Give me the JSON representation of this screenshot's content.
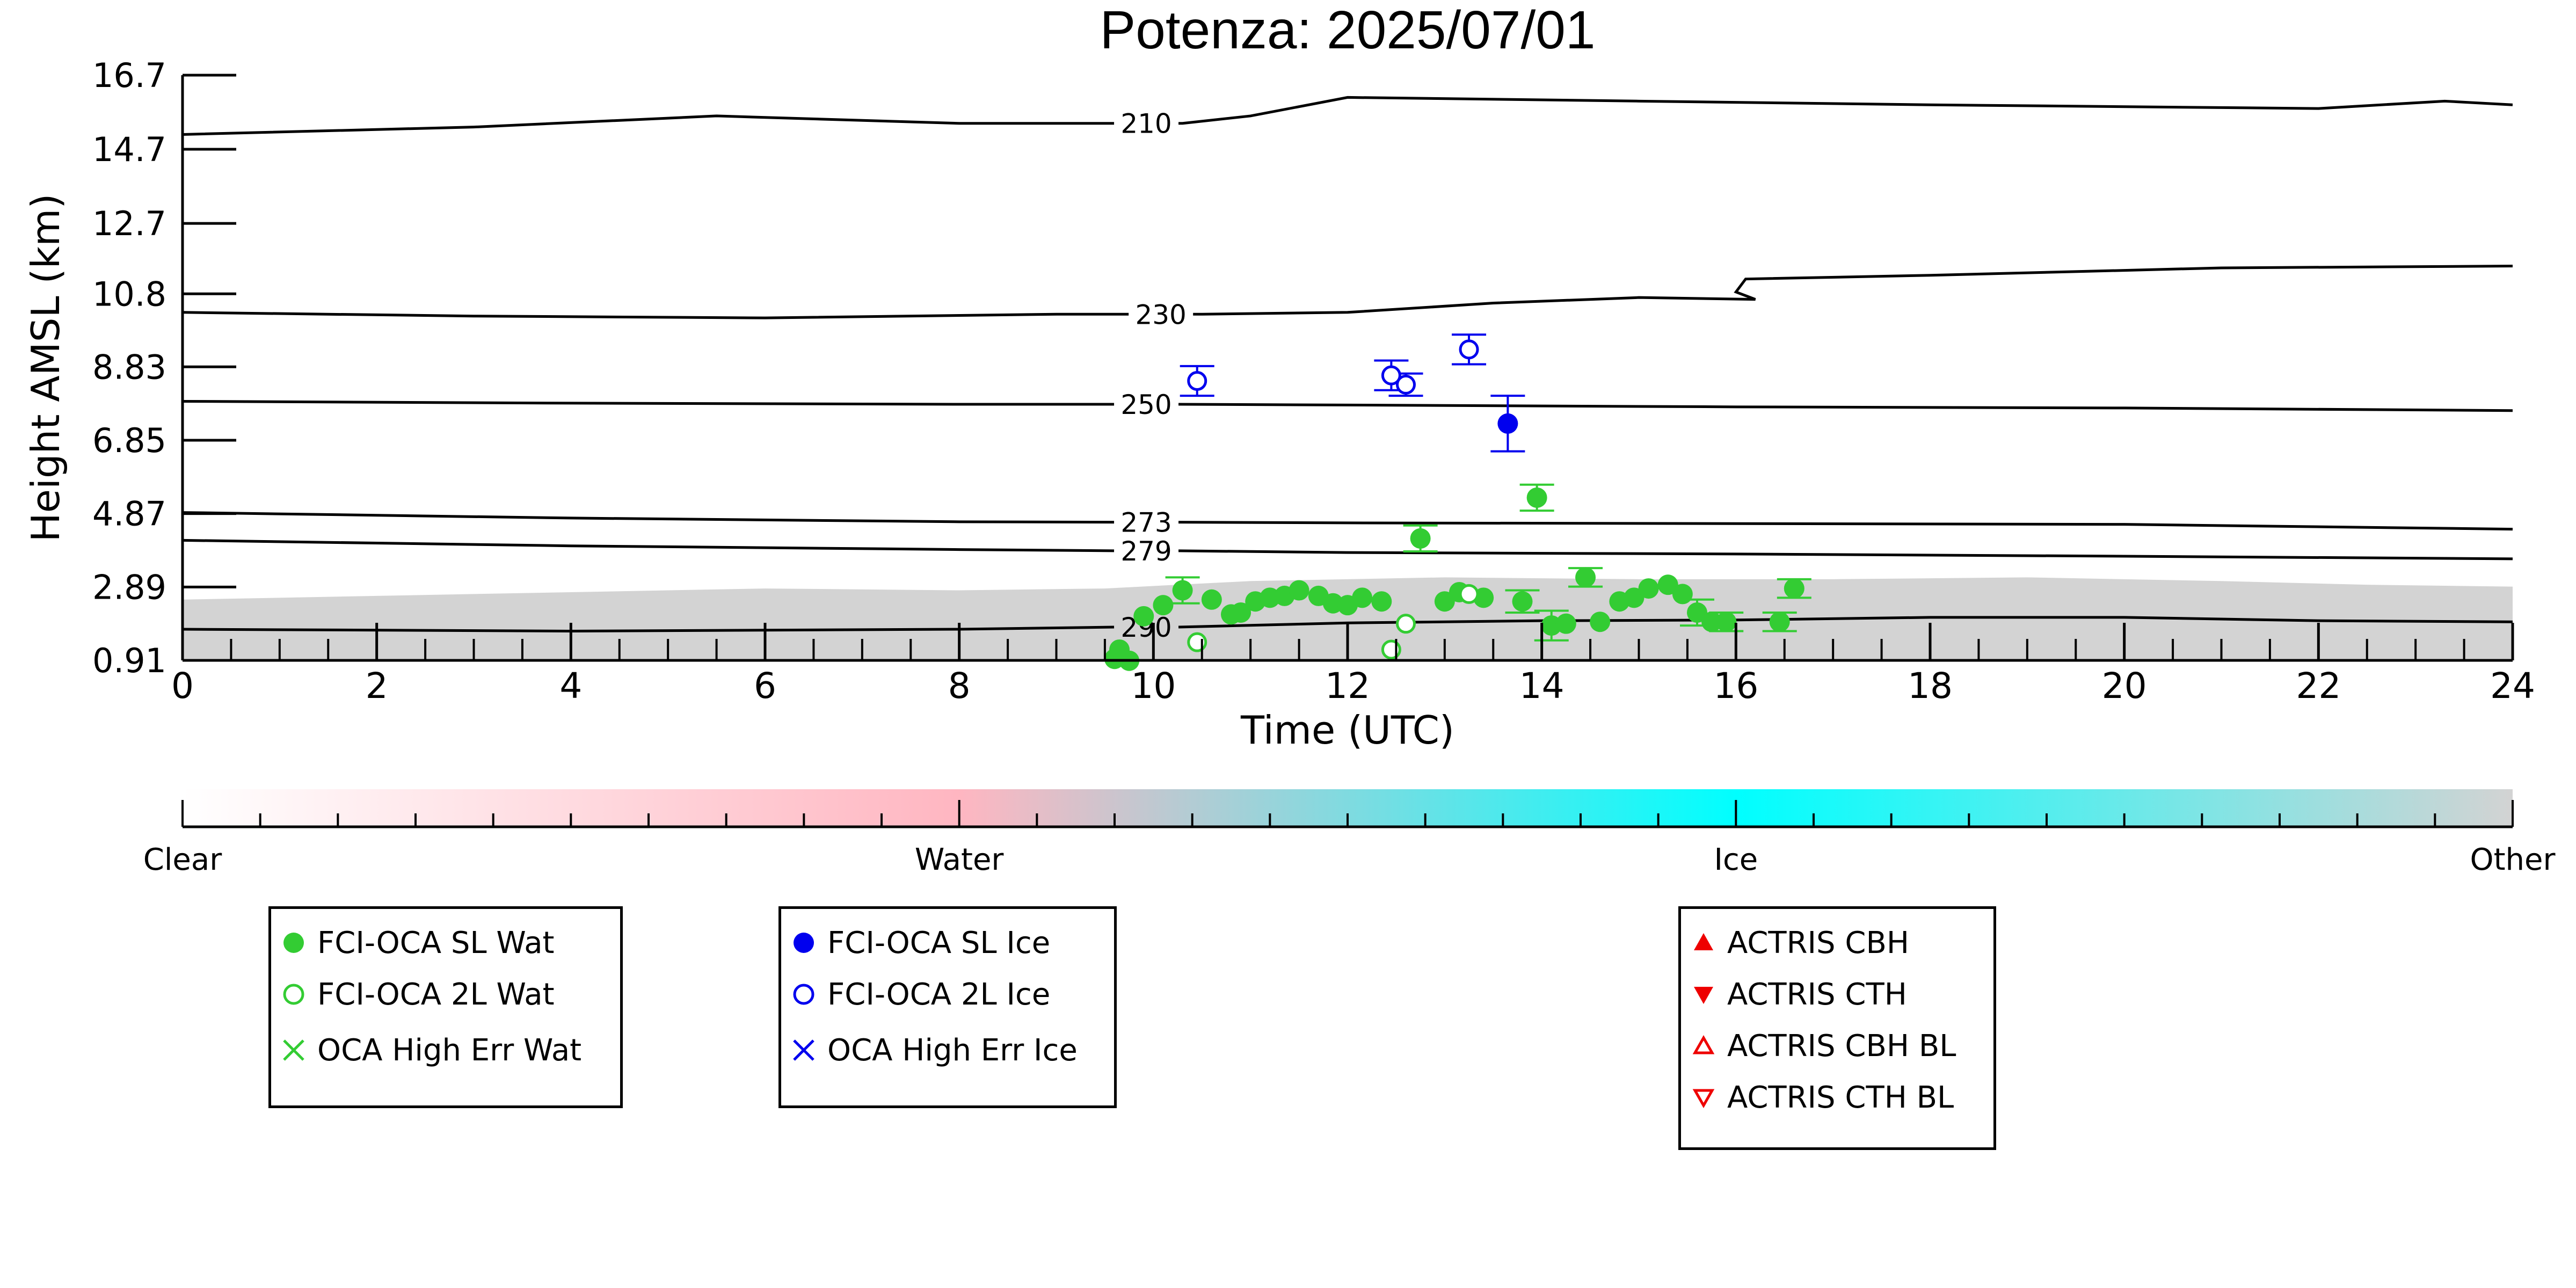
{
  "chart_data": {
    "type": "scatter",
    "title": "Potenza: 2025/07/01",
    "xlabel": "Time (UTC)",
    "ylabel": "Height AMSL (km)",
    "xlim": [
      0,
      24
    ],
    "ylim": [
      0.91,
      16.7
    ],
    "x_ticks": [
      "0",
      "2",
      "4",
      "6",
      "8",
      "10",
      "12",
      "14",
      "16",
      "18",
      "20",
      "22",
      "24"
    ],
    "y_ticks": [
      "0.91",
      "2.89",
      "4.87",
      "6.85",
      "8.83",
      "10.8",
      "12.7",
      "14.7",
      "16.7"
    ],
    "y_tick_values": [
      0.91,
      2.89,
      4.87,
      6.85,
      8.83,
      10.8,
      12.7,
      14.7,
      16.7
    ],
    "temperature_contours": [
      {
        "label": "210",
        "label_x": 9.65,
        "points": [
          [
            0,
            15.1
          ],
          [
            3,
            15.3
          ],
          [
            5.5,
            15.6
          ],
          [
            8,
            15.4
          ],
          [
            9.65,
            15.4
          ],
          [
            10.3,
            15.4
          ],
          [
            11,
            15.6
          ],
          [
            12,
            16.1
          ],
          [
            15,
            16.0
          ],
          [
            18,
            15.9
          ],
          [
            22,
            15.8
          ],
          [
            23.3,
            16.0
          ],
          [
            24,
            15.9
          ]
        ]
      },
      {
        "label": "230",
        "label_x": 9.8,
        "points": [
          [
            0,
            10.3
          ],
          [
            3,
            10.2
          ],
          [
            6,
            10.15
          ],
          [
            9,
            10.25
          ],
          [
            10.5,
            10.25
          ],
          [
            12,
            10.3
          ],
          [
            13.5,
            10.55
          ],
          [
            15,
            10.7
          ],
          [
            16.2,
            10.65
          ],
          [
            16.0,
            10.85
          ],
          [
            16.1,
            11.2
          ],
          [
            18,
            11.3
          ],
          [
            21,
            11.5
          ],
          [
            24,
            11.55
          ]
        ]
      },
      {
        "label": "250",
        "label_x": 9.65,
        "points": [
          [
            0,
            7.9
          ],
          [
            4,
            7.85
          ],
          [
            8,
            7.82
          ],
          [
            10,
            7.82
          ],
          [
            12,
            7.8
          ],
          [
            16,
            7.75
          ],
          [
            20,
            7.72
          ],
          [
            24,
            7.65
          ]
        ]
      },
      {
        "label": "273",
        "label_x": 9.65,
        "points": [
          [
            0,
            4.9
          ],
          [
            4,
            4.75
          ],
          [
            8,
            4.65
          ],
          [
            12,
            4.62
          ],
          [
            16,
            4.6
          ],
          [
            20,
            4.58
          ],
          [
            24,
            4.45
          ]
        ]
      },
      {
        "label": "279",
        "label_x": 9.65,
        "points": [
          [
            0,
            4.15
          ],
          [
            4,
            4.0
          ],
          [
            8,
            3.9
          ],
          [
            12,
            3.82
          ],
          [
            16,
            3.78
          ],
          [
            20,
            3.72
          ],
          [
            24,
            3.65
          ]
        ]
      },
      {
        "label": "290",
        "label_x": 9.65,
        "points": [
          [
            0,
            1.75
          ],
          [
            4,
            1.7
          ],
          [
            8,
            1.75
          ],
          [
            10,
            1.82
          ],
          [
            12,
            1.92
          ],
          [
            14,
            1.98
          ],
          [
            16,
            2.0
          ],
          [
            18,
            2.07
          ],
          [
            20,
            2.07
          ],
          [
            22,
            1.98
          ],
          [
            24,
            1.95
          ]
        ]
      }
    ],
    "series": [
      {
        "name": "FCI-OCA SL Wat",
        "color": "#33cc33",
        "marker": "filled-circle",
        "points": [
          [
            9.6,
            0.95
          ],
          [
            9.65,
            1.2
          ],
          [
            9.75,
            0.9
          ],
          [
            9.9,
            2.1
          ],
          [
            10.1,
            2.4
          ],
          [
            10.3,
            2.8
          ],
          [
            10.6,
            2.55
          ],
          [
            10.8,
            2.15
          ],
          [
            10.9,
            2.2
          ],
          [
            11.05,
            2.5
          ],
          [
            11.2,
            2.6
          ],
          [
            11.35,
            2.65
          ],
          [
            11.5,
            2.8
          ],
          [
            11.7,
            2.65
          ],
          [
            11.85,
            2.45
          ],
          [
            12.0,
            2.4
          ],
          [
            12.15,
            2.6
          ],
          [
            12.35,
            2.5
          ],
          [
            12.75,
            4.2
          ],
          [
            13.0,
            2.5
          ],
          [
            13.15,
            2.75
          ],
          [
            13.4,
            2.6
          ],
          [
            13.8,
            2.5
          ],
          [
            13.95,
            5.3
          ],
          [
            14.1,
            1.85
          ],
          [
            14.25,
            1.9
          ],
          [
            14.45,
            3.15
          ],
          [
            14.6,
            1.95
          ],
          [
            14.8,
            2.5
          ],
          [
            14.95,
            2.6
          ],
          [
            15.1,
            2.85
          ],
          [
            15.3,
            2.95
          ],
          [
            15.45,
            2.7
          ],
          [
            15.6,
            2.2
          ],
          [
            15.75,
            1.95
          ],
          [
            15.9,
            1.95
          ],
          [
            16.45,
            1.95
          ],
          [
            16.6,
            2.85
          ]
        ],
        "errors": [
          [
            10.3,
            0.35
          ],
          [
            12.75,
            0.35
          ],
          [
            13.8,
            0.3
          ],
          [
            13.95,
            0.35
          ],
          [
            14.1,
            0.4
          ],
          [
            14.45,
            0.25
          ],
          [
            15.6,
            0.35
          ],
          [
            15.9,
            0.25
          ],
          [
            16.45,
            0.25
          ],
          [
            16.6,
            0.25
          ]
        ]
      },
      {
        "name": "FCI-OCA 2L Wat",
        "color": "#33cc33",
        "marker": "open-circle",
        "points": [
          [
            10.45,
            1.4
          ],
          [
            12.45,
            1.2
          ],
          [
            12.6,
            1.9
          ],
          [
            13.25,
            2.7
          ]
        ]
      },
      {
        "name": "OCA High Err Wat",
        "color": "#33cc33",
        "marker": "x",
        "points": []
      },
      {
        "name": "FCI-OCA SL Ice",
        "color": "#0000ee",
        "marker": "filled-circle",
        "points": [
          [
            13.65,
            7.3
          ]
        ],
        "errors": [
          [
            13.65,
            0.75
          ]
        ]
      },
      {
        "name": "FCI-OCA 2L Ice",
        "color": "#0000ee",
        "marker": "open-circle",
        "points": [
          [
            10.45,
            8.45
          ],
          [
            12.45,
            8.6
          ],
          [
            12.6,
            8.35
          ],
          [
            13.25,
            9.3
          ]
        ],
        "errors": [
          [
            10.45,
            0.4
          ],
          [
            12.45,
            0.4
          ],
          [
            12.6,
            0.3
          ],
          [
            13.25,
            0.4
          ]
        ]
      },
      {
        "name": "OCA High Err Ice",
        "color": "#0000ee",
        "marker": "x",
        "points": []
      },
      {
        "name": "ACTRIS CBH",
        "color": "#ee0000",
        "marker": "filled-triangle-up",
        "points": []
      },
      {
        "name": "ACTRIS CTH",
        "color": "#ee0000",
        "marker": "filled-triangle-down",
        "points": []
      },
      {
        "name": "ACTRIS CBH BL",
        "color": "#ee0000",
        "marker": "open-triangle-up",
        "points": []
      },
      {
        "name": "ACTRIS CTH BL",
        "color": "#ee0000",
        "marker": "open-triangle-down",
        "points": []
      }
    ],
    "classification_background": {
      "category": "Other",
      "color": "#d3d3d3",
      "top_profile": [
        [
          0,
          2.55
        ],
        [
          2,
          2.65
        ],
        [
          4,
          2.75
        ],
        [
          6,
          2.85
        ],
        [
          8,
          2.8
        ],
        [
          9.5,
          2.85
        ],
        [
          11,
          3.05
        ],
        [
          13,
          3.15
        ],
        [
          15,
          3.1
        ],
        [
          17,
          3.1
        ],
        [
          19,
          3.15
        ],
        [
          21,
          3.05
        ],
        [
          22.5,
          2.95
        ],
        [
          24,
          2.9
        ]
      ]
    },
    "colorbar": {
      "labels": [
        "Clear",
        "Water",
        "Ice",
        "Other"
      ],
      "colors": [
        "#ffffff",
        "#ffb6c1",
        "#00ffff",
        "#d3d3d3"
      ],
      "range": [
        0,
        3
      ]
    }
  },
  "legends": [
    {
      "entries": [
        "FCI-OCA SL Wat",
        "FCI-OCA 2L Wat",
        "OCA High Err Wat"
      ]
    },
    {
      "entries": [
        "FCI-OCA SL Ice",
        "FCI-OCA 2L Ice",
        "OCA High Err Ice"
      ]
    },
    {
      "entries": [
        "ACTRIS CBH",
        "ACTRIS CTH",
        "ACTRIS CBH BL",
        "ACTRIS CTH BL"
      ]
    }
  ]
}
